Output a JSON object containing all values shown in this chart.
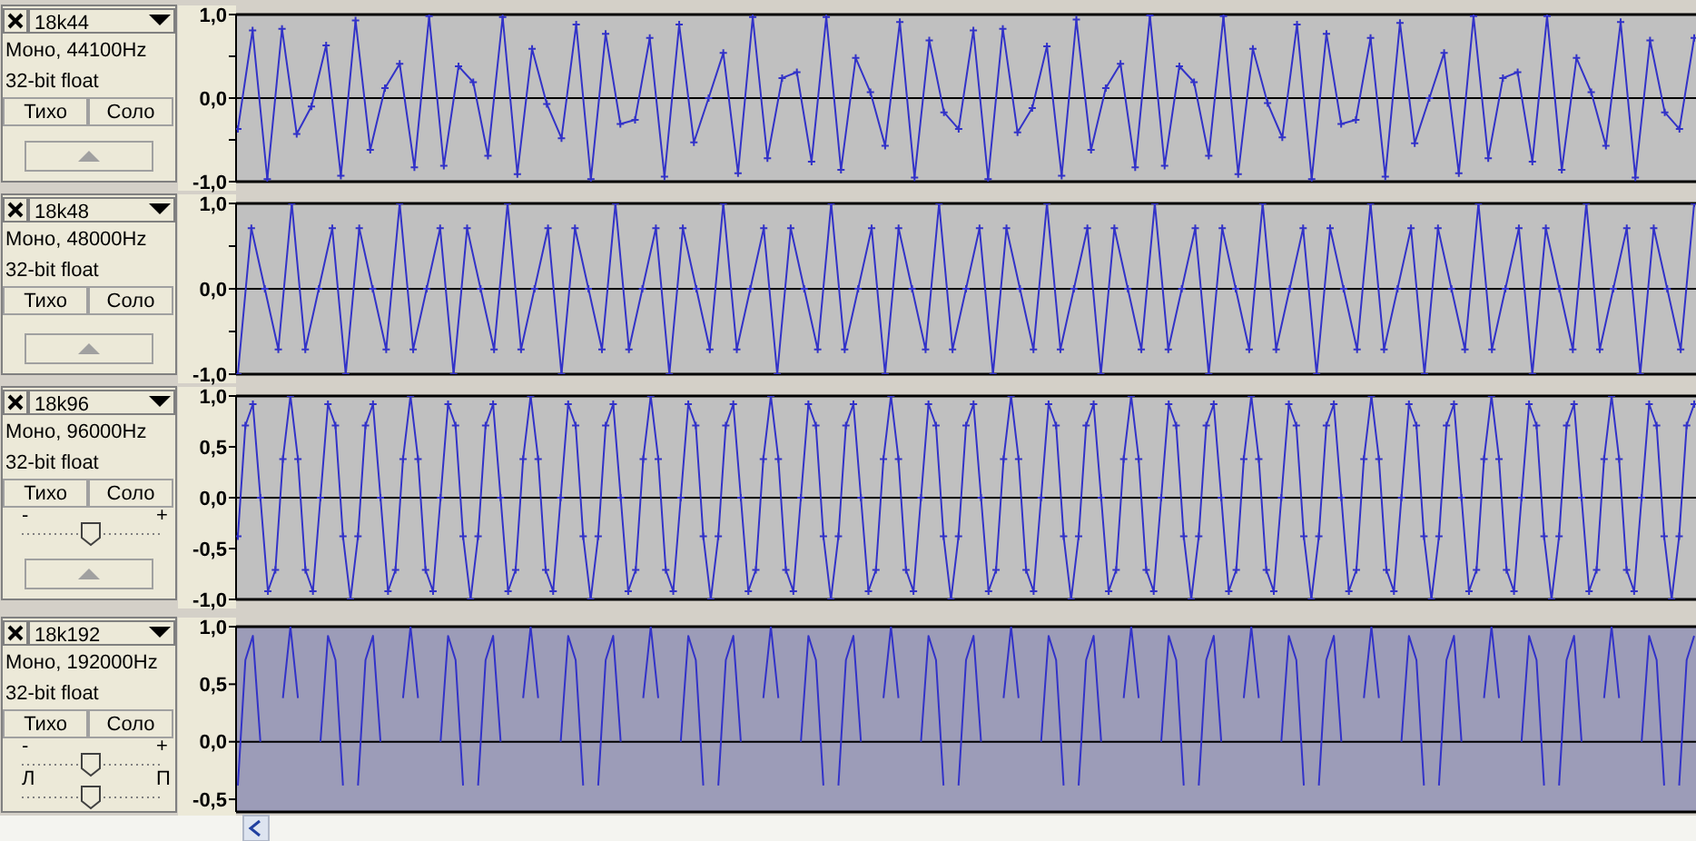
{
  "chart_data": [
    {
      "type": "line",
      "title": "18k44",
      "annotations": [
        "Моно, 44100Hz",
        "32-bit float",
        "Тихо",
        "Соло"
      ],
      "categories": [
        null,
        null,
        null,
        null,
        null,
        null,
        null,
        null,
        null,
        null,
        null,
        null,
        null,
        null,
        null,
        null,
        null,
        null,
        null,
        null,
        null,
        null,
        null,
        null,
        null,
        null,
        null,
        null,
        null,
        null,
        null,
        null,
        null,
        null,
        null,
        null,
        null,
        null,
        null,
        null,
        null,
        null,
        null,
        null,
        null,
        null,
        null,
        null,
        null,
        null,
        null,
        null,
        null,
        null,
        null,
        null,
        null,
        null,
        null,
        null,
        null,
        null,
        null,
        null,
        null,
        null,
        null,
        null,
        null,
        null,
        null,
        null,
        null,
        null,
        null,
        null,
        null,
        null,
        null,
        null,
        null,
        null,
        null,
        null,
        null,
        null,
        null,
        null,
        null,
        null,
        null,
        null,
        null,
        null,
        null,
        null,
        null,
        null,
        null,
        null
      ],
      "series": [
        {
          "color": "#3232c8",
          "values": [
            -0.37,
            0.81,
            -0.97,
            0.83,
            -0.43,
            -0.1,
            0.63,
            -0.93,
            0.93,
            -0.62,
            0.12,
            0.41,
            -0.83,
            0.98,
            -0.81,
            0.38,
            0.19,
            -0.69,
            0.97,
            -0.91,
            0.59,
            -0.07,
            -0.48,
            0.88,
            -0.97,
            0.77,
            -0.31,
            -0.26,
            0.72,
            -0.94,
            0.88,
            -0.53,
            0.0,
            0.54,
            -0.9,
            0.97,
            -0.72,
            0.24,
            0.31,
            -0.76,
            0.97,
            -0.86,
            0.48,
            0.07,
            -0.57,
            0.91,
            -0.95,
            0.69,
            -0.17,
            -0.37,
            0.81,
            -0.97,
            0.83,
            -0.41,
            -0.12,
            0.62,
            -0.93,
            0.94,
            -0.62,
            0.12,
            0.41,
            -0.83,
            0.99,
            -0.81,
            0.38,
            0.19,
            -0.69,
            0.98,
            -0.91,
            0.59,
            -0.06,
            -0.47,
            0.88,
            -0.97,
            0.77,
            -0.31,
            -0.26,
            0.72,
            -0.94,
            0.9,
            -0.54,
            0.0,
            0.54,
            -0.9,
            0.98,
            -0.72,
            0.24,
            0.31,
            -0.76,
            0.98,
            -0.86,
            0.48,
            0.07,
            -0.57,
            0.91,
            -0.95,
            0.69,
            -0.17,
            -0.37,
            0.72
          ]
        }
      ],
      "ylim": [
        -1,
        1
      ],
      "yticks": [
        {
          "value": 1,
          "label": "1,0"
        },
        {
          "value": 0.5,
          "label": null
        },
        {
          "value": 0,
          "label": "0,0"
        },
        {
          "value": -0.5,
          "label": null
        },
        {
          "value": -1,
          "label": "-1,0"
        }
      ],
      "ref_lines": [
        {
          "axis": "y",
          "value": 0,
          "color": "#000000"
        }
      ],
      "tick_labels": "y",
      "marker": "cross"
    },
    {
      "type": "line",
      "title": "18k48",
      "annotations": [
        "Моно, 48000Hz",
        "32-bit float",
        "Тихо",
        "Соло"
      ],
      "categories": [
        null,
        null,
        null,
        null,
        null,
        null,
        null,
        null,
        null,
        null,
        null,
        null,
        null,
        null,
        null,
        null,
        null,
        null,
        null,
        null,
        null,
        null,
        null,
        null,
        null,
        null,
        null,
        null,
        null,
        null,
        null,
        null,
        null,
        null,
        null,
        null,
        null,
        null,
        null,
        null,
        null,
        null,
        null,
        null,
        null,
        null,
        null,
        null,
        null,
        null,
        null,
        null,
        null,
        null,
        null,
        null,
        null,
        null,
        null,
        null,
        null,
        null,
        null,
        null,
        null,
        null,
        null,
        null,
        null,
        null,
        null,
        null,
        null,
        null,
        null,
        null,
        null,
        null,
        null,
        null,
        null,
        null,
        null,
        null,
        null,
        null,
        null,
        null,
        null,
        null,
        null,
        null,
        null,
        null,
        null,
        null,
        null,
        null,
        null,
        null,
        null,
        null,
        null,
        null,
        null,
        null,
        null,
        null,
        null
      ],
      "series": [
        {
          "color": "#3232c8",
          "values": [
            -1,
            0.71,
            0,
            -0.71,
            1,
            -0.71,
            0,
            0.71,
            -1,
            0.71,
            0,
            -0.71,
            1,
            -0.71,
            0,
            0.71,
            -1,
            0.71,
            0,
            -0.71,
            1,
            -0.71,
            0,
            0.71,
            -1,
            0.71,
            0,
            -0.71,
            1,
            -0.71,
            0,
            0.71,
            -1,
            0.71,
            0,
            -0.71,
            1,
            -0.71,
            0,
            0.71,
            -1,
            0.71,
            0,
            -0.71,
            1,
            -0.71,
            0,
            0.71,
            -1,
            0.71,
            0,
            -0.71,
            1,
            -0.71,
            0,
            0.71,
            -1,
            0.71,
            0,
            -0.71,
            1,
            -0.71,
            0,
            0.71,
            -1,
            0.71,
            0,
            -0.71,
            1,
            -0.71,
            0,
            0.71,
            -1,
            0.71,
            0,
            -0.71,
            1,
            -0.71,
            0,
            0.71,
            -1,
            0.71,
            0,
            -0.71,
            1,
            -0.71,
            0,
            0.71,
            -1,
            0.71,
            0,
            -0.71,
            1,
            -0.71,
            0,
            0.71,
            -1,
            0.71,
            0,
            -0.71,
            1,
            -0.71,
            0,
            0.71,
            -1,
            0.71,
            0,
            -0.71,
            1
          ]
        }
      ],
      "ylim": [
        -1,
        1
      ],
      "yticks": [
        {
          "value": 1,
          "label": "1,0"
        },
        {
          "value": 0.5,
          "label": null
        },
        {
          "value": 0,
          "label": "0,0"
        },
        {
          "value": -0.5,
          "label": null
        },
        {
          "value": -1,
          "label": "-1,0"
        }
      ],
      "ref_lines": [
        {
          "axis": "y",
          "value": 0,
          "color": "#000000"
        }
      ],
      "tick_labels": "y",
      "marker": "cross"
    },
    {
      "type": "line",
      "title": "18k96",
      "annotations": [
        "Моно, 96000Hz",
        "32-bit float",
        "Тихо",
        "Соло",
        "-",
        "+"
      ],
      "categories": [
        null,
        null,
        null,
        null,
        null,
        null,
        null,
        null,
        null,
        null,
        null,
        null,
        null,
        null,
        null,
        null,
        null,
        null,
        null,
        null,
        null,
        null,
        null,
        null,
        null,
        null,
        null,
        null,
        null,
        null,
        null,
        null,
        null,
        null,
        null,
        null,
        null,
        null,
        null,
        null,
        null,
        null,
        null,
        null,
        null,
        null,
        null,
        null,
        null,
        null,
        null,
        null,
        null,
        null,
        null,
        null,
        null,
        null,
        null,
        null,
        null,
        null,
        null,
        null,
        null,
        null,
        null,
        null,
        null,
        null,
        null,
        null,
        null,
        null,
        null,
        null,
        null,
        null,
        null,
        null,
        null,
        null,
        null,
        null,
        null,
        null,
        null,
        null,
        null,
        null,
        null,
        null,
        null,
        null,
        null,
        null,
        null,
        null,
        null,
        null,
        null,
        null,
        null,
        null,
        null,
        null,
        null,
        null,
        null,
        null,
        null,
        null,
        null,
        null,
        null,
        null,
        null,
        null,
        null,
        null,
        null,
        null,
        null,
        null,
        null,
        null,
        null,
        null,
        null,
        null,
        null,
        null,
        null,
        null,
        null,
        null,
        null,
        null,
        null,
        null,
        null,
        null,
        null,
        null,
        null,
        null,
        null,
        null,
        null,
        null,
        null,
        null,
        null,
        null,
        null,
        null,
        null,
        null,
        null,
        null,
        null,
        null,
        null,
        null,
        null,
        null,
        null,
        null,
        null,
        null,
        null,
        null,
        null,
        null,
        null,
        null,
        null,
        null,
        null,
        null,
        null,
        null,
        null,
        null,
        null,
        null,
        null,
        null,
        null,
        null,
        null,
        null,
        null,
        null,
        null
      ],
      "series": [
        {
          "color": "#3232c8",
          "values": [
            -0.38,
            0.71,
            0.92,
            0,
            -0.92,
            -0.71,
            0.38,
            1,
            0.38,
            -0.71,
            -0.92,
            0,
            0.92,
            0.71,
            -0.38,
            -1,
            -0.38,
            0.71,
            0.92,
            0,
            -0.92,
            -0.71,
            0.38,
            1,
            0.38,
            -0.71,
            -0.92,
            0,
            0.92,
            0.71,
            -0.38,
            -1,
            -0.38,
            0.71,
            0.92,
            0,
            -0.92,
            -0.71,
            0.38,
            1,
            0.38,
            -0.71,
            -0.92,
            0,
            0.92,
            0.71,
            -0.38,
            -1,
            -0.38,
            0.71,
            0.92,
            0,
            -0.92,
            -0.71,
            0.38,
            1,
            0.38,
            -0.71,
            -0.92,
            0,
            0.92,
            0.71,
            -0.38,
            -1,
            -0.38,
            0.71,
            0.92,
            0,
            -0.92,
            -0.71,
            0.38,
            1,
            0.38,
            -0.71,
            -0.92,
            0,
            0.92,
            0.71,
            -0.38,
            -1,
            -0.38,
            0.71,
            0.92,
            0,
            -0.92,
            -0.71,
            0.38,
            1,
            0.38,
            -0.71,
            -0.92,
            0,
            0.92,
            0.71,
            -0.38,
            -1,
            -0.38,
            0.71,
            0.92,
            0,
            -0.92,
            -0.71,
            0.38,
            1,
            0.38,
            -0.71,
            -0.92,
            0,
            0.92,
            0.71,
            -0.38,
            -1,
            -0.38,
            0.71,
            0.92,
            0,
            -0.92,
            -0.71,
            0.38,
            1,
            0.38,
            -0.71,
            -0.92,
            0,
            0.92,
            0.71,
            -0.38,
            -1,
            -0.38,
            0.71,
            0.92,
            0,
            -0.92,
            -0.71,
            0.38,
            1,
            0.38,
            -0.71,
            -0.92,
            0,
            0.92,
            0.71,
            -0.38,
            -1,
            -0.38,
            0.71,
            0.92,
            0,
            -0.92,
            -0.71,
            0.38,
            1,
            0.38,
            -0.71,
            -0.92,
            0,
            0.92,
            0.71,
            -0.38,
            -1,
            -0.38,
            0.71,
            0.92,
            0,
            -0.92,
            -0.71,
            0.38,
            1,
            0.38,
            -0.71,
            -0.92,
            0,
            0.92,
            0.71,
            -0.38,
            -1,
            -0.38,
            0.71,
            0.92,
            0,
            -0.92,
            -0.71,
            0.38,
            1,
            0.38,
            -0.71,
            -0.92,
            0,
            0.92,
            0.71,
            -0.38,
            -1,
            -0.38,
            0.71,
            0.92
          ]
        }
      ],
      "ylim": [
        -1,
        1
      ],
      "yticks": [
        {
          "value": 1,
          "label": "1,0"
        },
        {
          "value": 0.5,
          "label": "0,5"
        },
        {
          "value": 0,
          "label": "0,0"
        },
        {
          "value": -0.5,
          "label": "-0,5"
        },
        {
          "value": -1,
          "label": "-1,0"
        }
      ],
      "ref_lines": [
        {
          "axis": "y",
          "value": 0,
          "color": "#000000"
        }
      ],
      "tick_labels": "y",
      "marker": "cross"
    },
    {
      "type": "line",
      "title": "18k192",
      "annotations": [
        "Моно, 192000Hz",
        "32-bit float",
        "Тихо",
        "Соло",
        "-",
        "+",
        "Л",
        "П"
      ],
      "categories": [
        null,
        null,
        null,
        null,
        null,
        null,
        null,
        null,
        null,
        null,
        null,
        null,
        null,
        null,
        null,
        null,
        null,
        null,
        null,
        null,
        null,
        null,
        null,
        null,
        null,
        null,
        null,
        null,
        null,
        null,
        null,
        null,
        null,
        null,
        null,
        null,
        null,
        null,
        null,
        null,
        null,
        null,
        null,
        null,
        null,
        null,
        null,
        null,
        null,
        null,
        null,
        null,
        null,
        null,
        null,
        null,
        null,
        null,
        null,
        null,
        null,
        null,
        null,
        null,
        null,
        null,
        null,
        null,
        null,
        null,
        null,
        null,
        null,
        null,
        null,
        null,
        null,
        null,
        null,
        null,
        null,
        null,
        null,
        null,
        null,
        null,
        null,
        null,
        null,
        null,
        null,
        null,
        null,
        null,
        null,
        null,
        null,
        null,
        null,
        null,
        null,
        null,
        null,
        null,
        null,
        null,
        null,
        null,
        null,
        null,
        null,
        null,
        null,
        null,
        null,
        null,
        null,
        null,
        null,
        null,
        null,
        null,
        null,
        null,
        null,
        null,
        null,
        null,
        null,
        null,
        null,
        null,
        null,
        null,
        null,
        null,
        null,
        null,
        null,
        null,
        null,
        null,
        null,
        null,
        null,
        null,
        null,
        null,
        null,
        null,
        null,
        null,
        null,
        null,
        null,
        null,
        null,
        null,
        null,
        null,
        null,
        null,
        null,
        null,
        null,
        null,
        null,
        null,
        null,
        null,
        null,
        null,
        null,
        null,
        null,
        null,
        null,
        null,
        null,
        null,
        null,
        null,
        null,
        null,
        null,
        null,
        null,
        null,
        null,
        null,
        null,
        null,
        null,
        null,
        null
      ],
      "series": [
        {
          "color": "#3232c8",
          "values": [
            -0.38,
            0.71,
            0.92,
            0,
            null,
            null,
            0.38,
            1,
            0.38,
            null,
            null,
            0,
            0.92,
            0.71,
            -0.38,
            null,
            -0.38,
            0.71,
            0.92,
            0,
            null,
            null,
            0.38,
            1,
            0.38,
            null,
            null,
            0,
            0.92,
            0.71,
            -0.38,
            null,
            -0.38,
            0.71,
            0.92,
            0,
            null,
            null,
            0.38,
            1,
            0.38,
            null,
            null,
            0,
            0.92,
            0.71,
            -0.38,
            null,
            -0.38,
            0.71,
            0.92,
            0,
            null,
            null,
            0.38,
            1,
            0.38,
            null,
            null,
            0,
            0.92,
            0.71,
            -0.38,
            null,
            -0.38,
            0.71,
            0.92,
            0,
            null,
            null,
            0.38,
            1,
            0.38,
            null,
            null,
            0,
            0.92,
            0.71,
            -0.38,
            null,
            -0.38,
            0.71,
            0.92,
            0,
            null,
            null,
            0.38,
            1,
            0.38,
            null,
            null,
            0,
            0.92,
            0.71,
            -0.38,
            null,
            -0.38,
            0.71,
            0.92,
            0,
            null,
            null,
            0.38,
            1,
            0.38,
            null,
            null,
            0,
            0.92,
            0.71,
            -0.38,
            null,
            -0.38,
            0.71,
            0.92,
            0,
            null,
            null,
            0.38,
            1,
            0.38,
            null,
            null,
            0,
            0.92,
            0.71,
            -0.38,
            null,
            -0.38,
            0.71,
            0.92,
            0,
            null,
            null,
            0.38,
            1,
            0.38,
            null,
            null,
            0,
            0.92,
            0.71,
            -0.38,
            null,
            -0.38,
            0.71,
            0.92,
            0,
            null,
            null,
            0.38,
            1,
            0.38,
            null,
            null,
            0,
            0.92,
            0.71,
            -0.38,
            null,
            -0.38,
            0.71,
            0.92,
            0,
            null,
            null,
            0.38,
            1,
            0.38,
            null,
            null,
            0,
            0.92,
            0.71,
            -0.38,
            null,
            -0.38,
            0.71,
            0.92,
            0,
            null,
            null,
            0.38,
            1,
            0.38,
            null,
            null,
            0,
            0.92,
            0.71,
            -0.38,
            null,
            -0.38,
            0.71,
            0.92
          ]
        }
      ],
      "ylim": [
        -0.61,
        1
      ],
      "yticks": [
        {
          "value": 1,
          "label": "1,0"
        },
        {
          "value": 0.5,
          "label": "0,5"
        },
        {
          "value": 0,
          "label": "0,0"
        },
        {
          "value": -0.5,
          "label": "-0,5"
        }
      ],
      "ref_lines": [
        {
          "axis": "y",
          "value": 0,
          "color": "#000000"
        }
      ],
      "tick_labels": "y"
    }
  ]
}
